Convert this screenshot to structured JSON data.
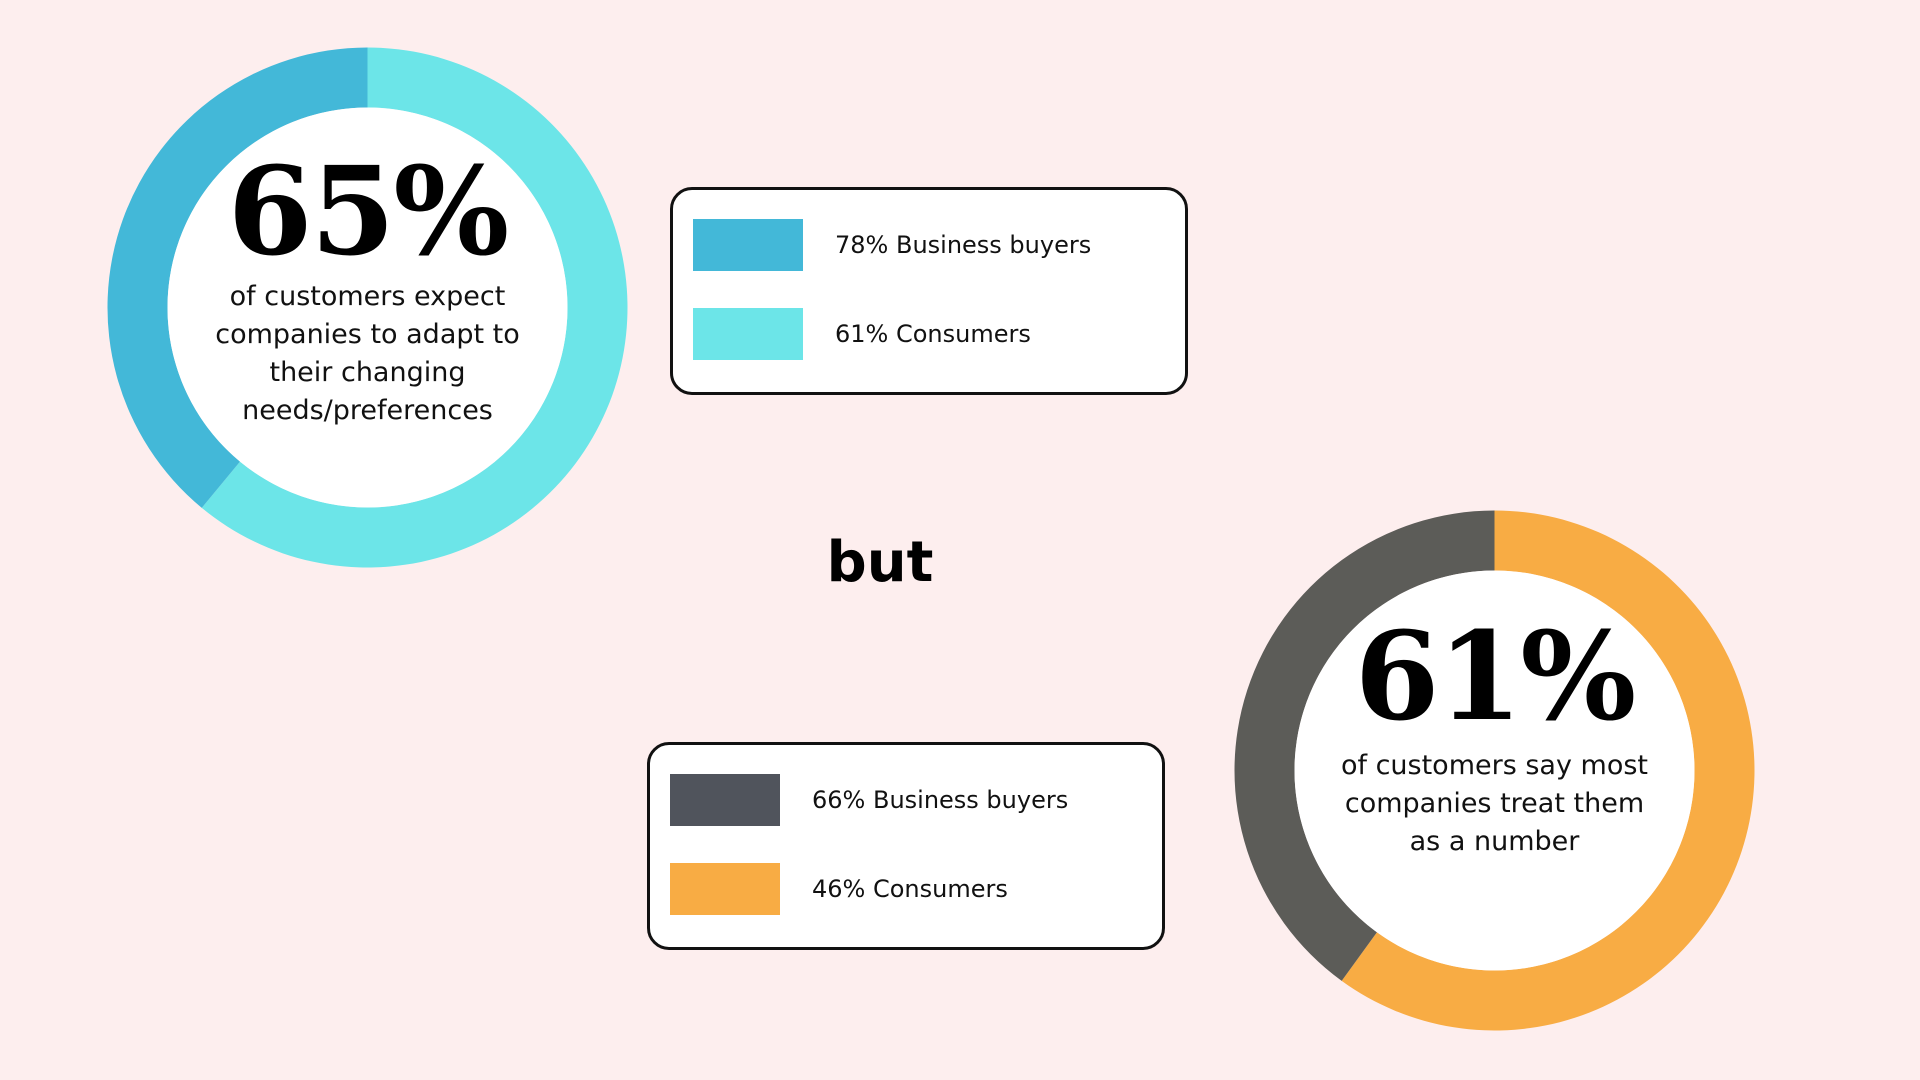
{
  "connector": "but",
  "colors": {
    "background": "#fdeeee",
    "business_buyers_blue": "#43b8d8",
    "consumers_cyan": "#6ce5e8",
    "business_buyers_gray": "#5c5c58",
    "consumers_orange": "#f8ac44",
    "legend_gray": "#50545c"
  },
  "chart_data": [
    {
      "type": "pie",
      "style": "donut",
      "center_value": "65%",
      "caption": "of customers expect companies to adapt to their changing needs/preferences",
      "legend_placement": "right",
      "legend": [
        {
          "label": "78% Business buyers",
          "color": "#43b8d8"
        },
        {
          "label": "61% Consumers",
          "color": "#6ce5e8"
        }
      ],
      "slices": [
        {
          "value": 61,
          "color": "#6ce5e8"
        },
        {
          "value": 39,
          "color": "#43b8d8"
        }
      ]
    },
    {
      "type": "pie",
      "style": "donut",
      "center_value": "61%",
      "caption": "of customers say most companies treat them as a number",
      "legend_placement": "left",
      "legend": [
        {
          "label": "66% Business buyers",
          "color": "#50545c"
        },
        {
          "label": "46% Consumers",
          "color": "#f8ac44"
        }
      ],
      "slices": [
        {
          "value": 60,
          "color": "#f8ac44"
        },
        {
          "value": 40,
          "color": "#5c5c58"
        }
      ]
    }
  ]
}
